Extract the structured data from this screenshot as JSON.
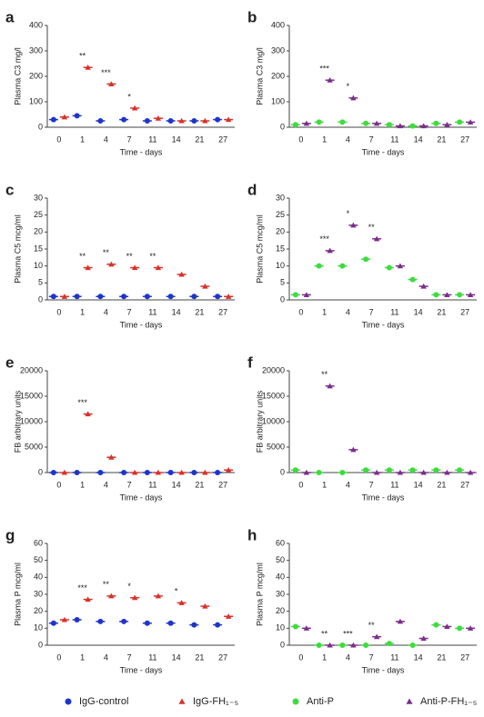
{
  "chart_data": [
    {
      "type": "scatter",
      "label": "a",
      "y_label": "Plasma C3 mg/l",
      "x_label": "Time - days",
      "categories": [
        "0",
        "1",
        "4",
        "7",
        "11",
        "14",
        "21",
        "27"
      ],
      "ylim": [
        0,
        400
      ],
      "yticks": [
        0,
        100,
        200,
        300,
        400
      ],
      "series": [
        {
          "name": "IgG-control",
          "color": "#1f35c9",
          "marker": "circle",
          "values": [
            30,
            45,
            25,
            30,
            25,
            25,
            25,
            30
          ]
        },
        {
          "name": "IgG-FH₁₋₅",
          "color": "#d9302a",
          "marker": "triangle",
          "values": [
            40,
            235,
            170,
            75,
            35,
            25,
            25,
            30
          ]
        }
      ],
      "annotations": [
        {
          "text": "**",
          "x": "1"
        },
        {
          "text": "***",
          "x": "4"
        },
        {
          "text": "*",
          "x": "7"
        }
      ]
    },
    {
      "type": "scatter",
      "label": "b",
      "y_label": "Plasma C3 mg/l",
      "x_label": "Time - days",
      "categories": [
        "0",
        "1",
        "4",
        "7",
        "11",
        "14",
        "21",
        "27"
      ],
      "ylim": [
        0,
        400
      ],
      "yticks": [
        0,
        100,
        200,
        300,
        400
      ],
      "series": [
        {
          "name": "Anti-P",
          "color": "#3ddc3d",
          "marker": "circle",
          "values": [
            10,
            20,
            20,
            15,
            10,
            5,
            15,
            20
          ]
        },
        {
          "name": "Anti-P-FH₁₋₅",
          "color": "#7a2e8a",
          "marker": "triangle",
          "values": [
            15,
            185,
            115,
            15,
            5,
            5,
            10,
            20
          ]
        }
      ],
      "annotations": [
        {
          "text": "***",
          "x": "1"
        },
        {
          "text": "*",
          "x": "4"
        }
      ]
    },
    {
      "type": "scatter",
      "label": "c",
      "y_label": "Plasma C5 mcg/ml",
      "x_label": "Time - days",
      "categories": [
        "0",
        "1",
        "4",
        "7",
        "11",
        "14",
        "21",
        "27"
      ],
      "ylim": [
        0,
        30
      ],
      "yticks": [
        0,
        5,
        10,
        15,
        20,
        25,
        30
      ],
      "series": [
        {
          "name": "IgG-control",
          "color": "#1f35c9",
          "marker": "circle",
          "values": [
            1,
            1,
            1,
            1,
            1,
            1,
            1,
            1
          ]
        },
        {
          "name": "IgG-FH₁₋₅",
          "color": "#d9302a",
          "marker": "triangle",
          "values": [
            1,
            9.5,
            10.5,
            9.5,
            9.5,
            7.5,
            4,
            1
          ]
        }
      ],
      "annotations": [
        {
          "text": "**",
          "x": "1"
        },
        {
          "text": "**",
          "x": "4"
        },
        {
          "text": "**",
          "x": "7"
        },
        {
          "text": "**",
          "x": "11"
        }
      ]
    },
    {
      "type": "scatter",
      "label": "d",
      "y_label": "Plasma C5 mcg/ml",
      "x_label": "Time - days",
      "categories": [
        "0",
        "1",
        "4",
        "7",
        "11",
        "14",
        "21",
        "27"
      ],
      "ylim": [
        0,
        30
      ],
      "yticks": [
        0,
        5,
        10,
        15,
        20,
        25,
        30
      ],
      "series": [
        {
          "name": "Anti-P",
          "color": "#3ddc3d",
          "marker": "circle",
          "values": [
            1.5,
            10,
            10,
            12,
            9.5,
            6,
            1.5,
            1.5
          ]
        },
        {
          "name": "Anti-P-FH₁₋₅",
          "color": "#7a2e8a",
          "marker": "triangle",
          "values": [
            1.5,
            14.5,
            22,
            18,
            10,
            4,
            1.5,
            1.5
          ]
        }
      ],
      "annotations": [
        {
          "text": "***",
          "x": "1"
        },
        {
          "text": "*",
          "x": "4"
        },
        {
          "text": "**",
          "x": "7"
        }
      ]
    },
    {
      "type": "scatter",
      "label": "e",
      "y_label": "FB arbitrary units",
      "x_label": "Time - days",
      "categories": [
        "0",
        "1",
        "4",
        "7",
        "11",
        "14",
        "21",
        "27"
      ],
      "ylim": [
        0,
        20000
      ],
      "yticks": [
        0,
        5000,
        10000,
        15000,
        20000
      ],
      "series": [
        {
          "name": "IgG-control",
          "color": "#1f35c9",
          "marker": "circle",
          "values": [
            0,
            0,
            0,
            0,
            0,
            0,
            0,
            0
          ]
        },
        {
          "name": "IgG-FH₁₋₅",
          "color": "#d9302a",
          "marker": "triangle",
          "values": [
            0,
            11500,
            3000,
            0,
            0,
            0,
            0,
            500
          ]
        }
      ],
      "annotations": [
        {
          "text": "***",
          "x": "1"
        }
      ]
    },
    {
      "type": "scatter",
      "label": "f",
      "y_label": "FB arbitrary units",
      "x_label": "Time - days",
      "categories": [
        "0",
        "1",
        "4",
        "7",
        "11",
        "14",
        "21",
        "27"
      ],
      "ylim": [
        0,
        20000
      ],
      "yticks": [
        0,
        5000,
        10000,
        15000,
        20000
      ],
      "series": [
        {
          "name": "Anti-P",
          "color": "#3ddc3d",
          "marker": "circle",
          "values": [
            500,
            0,
            0,
            500,
            500,
            500,
            500,
            500
          ]
        },
        {
          "name": "Anti-P-FH₁₋₅",
          "color": "#7a2e8a",
          "marker": "triangle",
          "values": [
            0,
            17000,
            4500,
            0,
            0,
            0,
            0,
            0
          ]
        }
      ],
      "annotations": [
        {
          "text": "**",
          "x": "1"
        }
      ]
    },
    {
      "type": "scatter",
      "label": "g",
      "y_label": "Plasma P mcg/ml",
      "x_label": "Time - days",
      "categories": [
        "0",
        "1",
        "4",
        "7",
        "11",
        "14",
        "21",
        "27"
      ],
      "ylim": [
        0,
        60
      ],
      "yticks": [
        0,
        10,
        20,
        30,
        40,
        50,
        60
      ],
      "series": [
        {
          "name": "IgG-control",
          "color": "#1f35c9",
          "marker": "circle",
          "values": [
            13,
            15,
            14,
            14,
            13,
            13,
            12,
            12
          ]
        },
        {
          "name": "IgG-FH₁₋₅",
          "color": "#d9302a",
          "marker": "triangle",
          "values": [
            15,
            27,
            29,
            28,
            29,
            25,
            23,
            17
          ]
        }
      ],
      "annotations": [
        {
          "text": "***",
          "x": "1"
        },
        {
          "text": "**",
          "x": "4"
        },
        {
          "text": "*",
          "x": "7"
        },
        {
          "text": "*",
          "x": "14"
        }
      ]
    },
    {
      "type": "scatter",
      "label": "h",
      "y_label": "Plasma P mcg/ml",
      "x_label": "Time - days",
      "categories": [
        "0",
        "1",
        "4",
        "7",
        "11",
        "14",
        "21",
        "27"
      ],
      "ylim": [
        0,
        60
      ],
      "yticks": [
        0,
        10,
        20,
        30,
        40,
        50,
        60
      ],
      "series": [
        {
          "name": "Anti-P",
          "color": "#3ddc3d",
          "marker": "circle",
          "values": [
            11,
            0,
            0,
            0,
            1,
            0,
            12,
            10
          ]
        },
        {
          "name": "Anti-P-FH₁₋₅",
          "color": "#7a2e8a",
          "marker": "triangle",
          "values": [
            10,
            0,
            0,
            5,
            14,
            4,
            11,
            10
          ]
        }
      ],
      "annotations": [
        {
          "text": "**",
          "x": "1"
        },
        {
          "text": "***",
          "x": "4"
        },
        {
          "text": "**",
          "x": "7"
        }
      ]
    }
  ]
}
